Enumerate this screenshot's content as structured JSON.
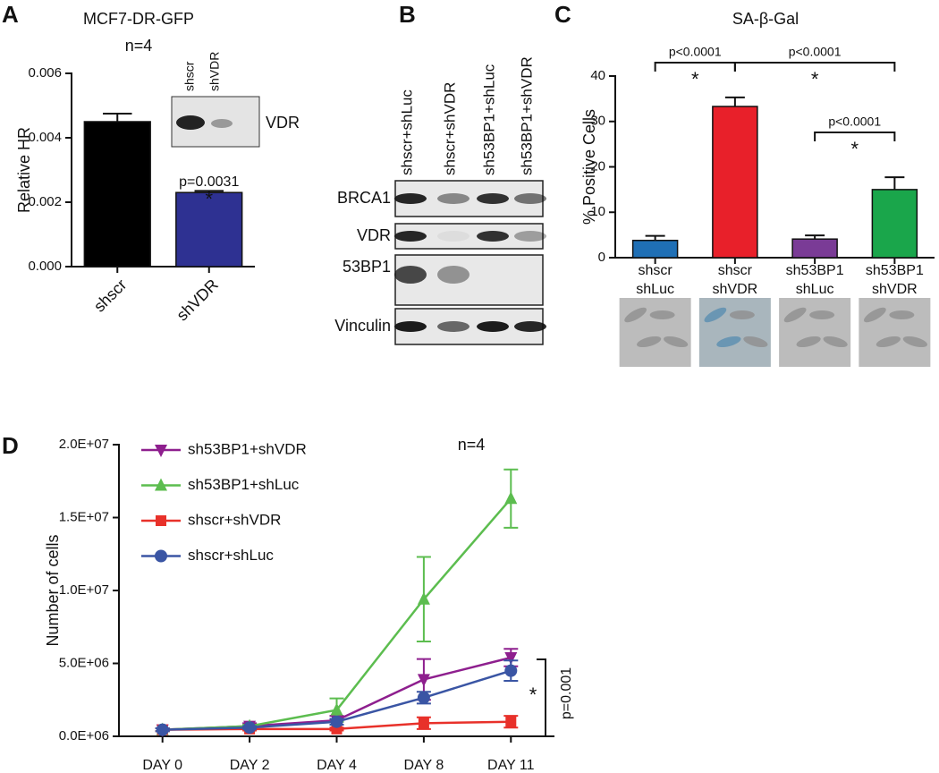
{
  "chart_data": [
    {
      "panel": "A",
      "type": "bar",
      "title": "MCF7-DR-GFP",
      "subtitle": "n=4",
      "y_label": "Relative HR",
      "categories": [
        "shscr",
        "shVDR"
      ],
      "values": [
        0.0045,
        0.0023
      ],
      "errors": [
        0.00025,
        5e-05
      ],
      "colors": [
        "#000000",
        "#2e3192"
      ],
      "ylim": [
        0,
        0.006
      ],
      "yticks": [
        {
          "value": 0,
          "label": "0.000"
        },
        {
          "value": 0.002,
          "label": "0.002"
        },
        {
          "value": 0.004,
          "label": "0.004"
        },
        {
          "value": 0.006,
          "label": "0.006"
        }
      ],
      "annotation": {
        "label": "p=0.0031",
        "star": "*"
      },
      "inset": {
        "lanes": [
          "shscr",
          "shVDR"
        ],
        "band": "VDR"
      }
    },
    {
      "panel": "C",
      "type": "bar",
      "title": "SA-β-Gal",
      "y_label": "% Positive Cells",
      "categories": [
        [
          "shscr",
          "shLuc"
        ],
        [
          "shscr",
          "shVDR"
        ],
        [
          "sh53BP1",
          "shLuc"
        ],
        [
          "sh53BP1",
          "shVDR"
        ]
      ],
      "values": [
        3.8,
        33.3,
        4.1,
        15
      ],
      "errors": [
        1.0,
        2.0,
        0.8,
        2.7
      ],
      "colors": [
        "#1f6fb5",
        "#e8202a",
        "#7a3b96",
        "#1aa64b"
      ],
      "ylim": [
        0,
        40
      ],
      "yticks": [
        0,
        10,
        20,
        30,
        40
      ],
      "comparisons": [
        {
          "label": "p<0.0001",
          "star": "*"
        },
        {
          "label": "p<0.0001",
          "star": "*"
        },
        {
          "label": "p<0.0001",
          "star": "*"
        }
      ]
    },
    {
      "panel": "D",
      "type": "line",
      "subtitle": "n=4",
      "y_label": "Number of cells",
      "categories": [
        "DAY 0",
        "DAY 2",
        "DAY 4",
        "DAY 8",
        "DAY 11"
      ],
      "ylim": [
        0,
        20000000
      ],
      "yticks": [
        {
          "value": 0,
          "label": "0.0E+06"
        },
        {
          "value": 5000000,
          "label": "5.0E+06"
        },
        {
          "value": 10000000,
          "label": "1.0E+07"
        },
        {
          "value": 15000000,
          "label": "1.5E+07"
        },
        {
          "value": 20000000,
          "label": "2.0E+07"
        }
      ],
      "series": [
        {
          "name": "sh53BP1+shVDR",
          "color": "#8e1f8e",
          "marker": "triangle-down",
          "values": [
            450000,
            700000,
            1100000,
            3900000,
            5400000
          ],
          "errors": [
            100000,
            200000,
            300000,
            1400000,
            600000
          ]
        },
        {
          "name": "sh53BP1+shLuc",
          "color": "#5cbd4f",
          "marker": "triangle-up",
          "values": [
            450000,
            700000,
            1800000,
            9400000,
            16300000
          ],
          "errors": [
            100000,
            100000,
            800000,
            2900000,
            2000000
          ]
        },
        {
          "name": "shscr+shVDR",
          "color": "#e8312a",
          "marker": "square",
          "values": [
            450000,
            500000,
            500000,
            900000,
            1000000
          ],
          "errors": [
            100000,
            100000,
            100000,
            400000,
            400000
          ]
        },
        {
          "name": "shscr+shLuc",
          "color": "#3a55a4",
          "marker": "circle",
          "values": [
            450000,
            600000,
            1000000,
            2650000,
            4500000
          ],
          "errors": [
            100000,
            100000,
            200000,
            400000,
            700000
          ]
        }
      ],
      "annotation": {
        "label": "p=0.001",
        "star": "*"
      }
    }
  ],
  "blot": {
    "panel": "B",
    "lanes": [
      "shscr+shLuc",
      "shscr+shVDR",
      "sh53BP1+shLuc",
      "sh53BP1+shVDR"
    ],
    "rows": [
      "BRCA1",
      "VDR",
      "53BP1",
      "Vinculin"
    ]
  }
}
